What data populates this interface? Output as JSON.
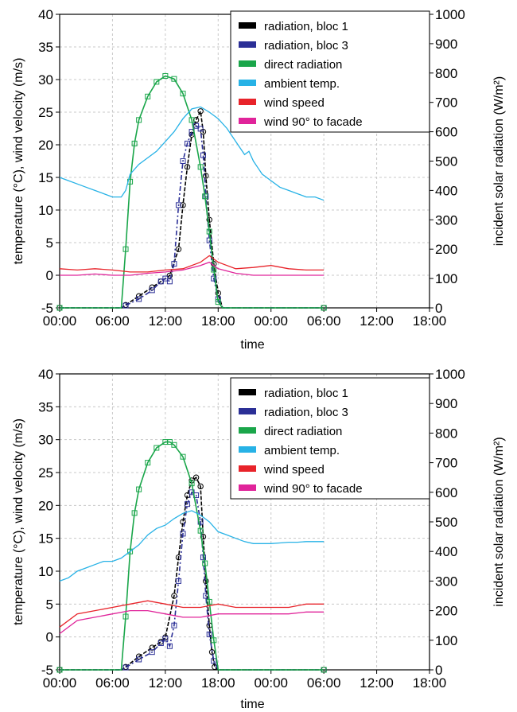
{
  "chart_data": [
    {
      "type": "line",
      "xlabel": "time",
      "ylabel": "temperature (°C), wind velocity (m/s)",
      "y2label": "incident solar radiation (W/m²)",
      "x_ticks": [
        "00:00",
        "06:00",
        "12:00",
        "18:00",
        "00:00",
        "06:00",
        "12:00",
        "18:00"
      ],
      "x_unit": "hours",
      "xlim": [
        0,
        42
      ],
      "ylim": [
        -5,
        40
      ],
      "y_ticks": [
        -5,
        0,
        5,
        10,
        15,
        20,
        25,
        30,
        35,
        40
      ],
      "y2lim": [
        0,
        1000
      ],
      "y2_ticks": [
        0,
        100,
        200,
        300,
        400,
        500,
        600,
        700,
        800,
        900,
        1000
      ],
      "grid": true,
      "legend": "top-right",
      "series": [
        {
          "name": "radiation, bloc 1",
          "axis": "right",
          "color": "#000000",
          "marker": "circle",
          "x": [
            0,
            7,
            7.5,
            9,
            10.5,
            11.5,
            12.5,
            13.5,
            14,
            14.5,
            15,
            15.5,
            16,
            16.3,
            16.6,
            17,
            17.5,
            18,
            18.5,
            19,
            30
          ],
          "y": [
            0,
            0,
            10,
            40,
            70,
            90,
            110,
            200,
            350,
            480,
            590,
            640,
            670,
            600,
            450,
            300,
            150,
            50,
            0,
            0,
            0
          ]
        },
        {
          "name": "radiation, bloc 3",
          "axis": "right",
          "color": "#2b2f96",
          "marker": "square",
          "x": [
            0,
            7,
            7.5,
            9,
            10.5,
            11.5,
            12,
            12.5,
            13,
            13.5,
            14,
            14.5,
            15,
            15.5,
            16,
            16.3,
            16.6,
            17,
            17.5,
            18,
            18.5,
            30
          ],
          "y": [
            0,
            0,
            8,
            30,
            60,
            90,
            100,
            90,
            150,
            350,
            500,
            560,
            600,
            620,
            610,
            520,
            380,
            230,
            100,
            30,
            0,
            0
          ]
        },
        {
          "name": "direct radiation",
          "axis": "right",
          "color": "#1aa64a",
          "marker": "square",
          "x": [
            0,
            7,
            7.5,
            8,
            8.5,
            9,
            10,
            11,
            12,
            13,
            14,
            15,
            16,
            16.5,
            17,
            17.5,
            18,
            18.5,
            30
          ],
          "y": [
            0,
            0,
            200,
            430,
            560,
            640,
            720,
            770,
            790,
            780,
            730,
            640,
            480,
            380,
            260,
            130,
            20,
            0,
            0
          ]
        },
        {
          "name": "ambient temp.",
          "axis": "left",
          "color": "#27b2e6",
          "x": [
            0,
            1,
            2,
            3,
            4,
            5,
            6,
            7,
            7.5,
            8,
            9,
            10,
            11,
            12,
            13,
            14,
            15,
            16,
            17,
            18,
            19,
            20,
            21,
            21.5,
            22,
            22.5,
            23,
            24,
            25,
            26,
            27,
            28,
            29,
            30
          ],
          "y": [
            15,
            14.5,
            14,
            13.5,
            13,
            12.5,
            12,
            12,
            13,
            15.5,
            17,
            18,
            19,
            20.5,
            22,
            24,
            25.5,
            25.8,
            25,
            24,
            22.5,
            20.5,
            18.5,
            19,
            17.5,
            16.5,
            15.5,
            14.5,
            13.5,
            13,
            12.5,
            12,
            12,
            11.5
          ]
        },
        {
          "name": "wind speed",
          "axis": "left",
          "color": "#e8232a",
          "x": [
            0,
            2,
            4,
            6,
            8,
            10,
            12,
            14,
            16,
            17,
            18,
            20,
            22,
            24,
            26,
            28,
            30
          ],
          "y": [
            1,
            0.8,
            1,
            0.8,
            0.5,
            0.5,
            0.8,
            1,
            2,
            3,
            2,
            1,
            1.2,
            1.5,
            1,
            0.8,
            0.8
          ]
        },
        {
          "name": "wind 90° to facade",
          "axis": "left",
          "color": "#e0249a",
          "x": [
            0,
            2,
            4,
            6,
            8,
            10,
            12,
            14,
            16,
            17,
            18,
            20,
            22,
            24,
            26,
            28,
            30
          ],
          "y": [
            0,
            0,
            0.2,
            0,
            0,
            0.3,
            0.5,
            0.8,
            1.5,
            2,
            1,
            0.3,
            0,
            0,
            0,
            0,
            0
          ]
        }
      ]
    },
    {
      "type": "line",
      "xlabel": "time",
      "ylabel": "temperature (°C), wind velocity (m/s)",
      "y2label": "incident solar radiation (W/m²)",
      "x_ticks": [
        "00:00",
        "06:00",
        "12:00",
        "18:00",
        "00:00",
        "06:00",
        "12:00",
        "18:00"
      ],
      "x_unit": "hours",
      "xlim": [
        0,
        42
      ],
      "ylim": [
        -5,
        40
      ],
      "y_ticks": [
        -5,
        0,
        5,
        10,
        15,
        20,
        25,
        30,
        35,
        40
      ],
      "y2lim": [
        0,
        1000
      ],
      "y2_ticks": [
        0,
        100,
        200,
        300,
        400,
        500,
        600,
        700,
        800,
        900,
        1000
      ],
      "grid": true,
      "legend": "top-right",
      "series": [
        {
          "name": "radiation, bloc 1",
          "axis": "right",
          "color": "#000000",
          "marker": "circle",
          "x": [
            0,
            7,
            7.5,
            9,
            10.5,
            11.5,
            12,
            13,
            13.5,
            14,
            14.5,
            15,
            15.5,
            16,
            16.3,
            16.6,
            17,
            17.3,
            17.6,
            18,
            30
          ],
          "y": [
            0,
            0,
            10,
            45,
            75,
            95,
            110,
            250,
            380,
            500,
            590,
            640,
            650,
            620,
            450,
            300,
            150,
            60,
            10,
            0,
            0
          ]
        },
        {
          "name": "radiation, bloc 3",
          "axis": "right",
          "color": "#2b2f96",
          "marker": "square",
          "x": [
            0,
            7,
            7.5,
            9,
            10.5,
            11.5,
            12,
            12.5,
            13,
            13.5,
            14,
            14.5,
            15,
            15.5,
            16,
            16.3,
            16.6,
            17,
            17.5,
            18,
            30
          ],
          "y": [
            0,
            0,
            8,
            35,
            60,
            90,
            105,
            80,
            150,
            300,
            460,
            560,
            600,
            590,
            500,
            380,
            250,
            120,
            30,
            0,
            0
          ]
        },
        {
          "name": "direct radiation",
          "axis": "right",
          "color": "#1aa64a",
          "marker": "square",
          "x": [
            0,
            7,
            7.5,
            8,
            8.5,
            9,
            10,
            11,
            12,
            12.5,
            13,
            14,
            15,
            16,
            16.5,
            17,
            17.5,
            18,
            30
          ],
          "y": [
            0,
            0,
            180,
            400,
            530,
            610,
            700,
            750,
            770,
            770,
            760,
            720,
            630,
            470,
            360,
            230,
            100,
            0,
            0
          ]
        },
        {
          "name": "ambient temp.",
          "axis": "left",
          "color": "#27b2e6",
          "x": [
            0,
            1,
            2,
            3,
            4,
            5,
            6,
            7,
            8,
            9,
            10,
            11,
            12,
            13,
            14,
            15,
            16,
            17,
            18,
            19,
            20,
            21,
            22,
            23,
            24,
            25,
            26,
            27,
            28,
            29,
            30
          ],
          "y": [
            8.5,
            9,
            10,
            10.5,
            11,
            11.5,
            11.5,
            12,
            13,
            14,
            15.5,
            16.5,
            17,
            18,
            18.8,
            19.2,
            18.5,
            17.5,
            16,
            15.5,
            15,
            14.5,
            14.2,
            14.2,
            14.2,
            14.3,
            14.4,
            14.4,
            14.5,
            14.5,
            14.5
          ]
        },
        {
          "name": "wind speed",
          "axis": "left",
          "color": "#e8232a",
          "x": [
            0,
            2,
            4,
            6,
            8,
            10,
            12,
            14,
            16,
            18,
            20,
            22,
            24,
            26,
            28,
            30
          ],
          "y": [
            1.5,
            3.5,
            4,
            4.5,
            5,
            5.5,
            5,
            4.5,
            4.5,
            5,
            4.5,
            4.5,
            4.5,
            4.5,
            5,
            5
          ]
        },
        {
          "name": "wind 90° to facade",
          "axis": "left",
          "color": "#e0249a",
          "x": [
            0,
            2,
            4,
            6,
            8,
            10,
            12,
            14,
            16,
            18,
            20,
            22,
            24,
            26,
            28,
            30
          ],
          "y": [
            0.5,
            2.5,
            3,
            3.5,
            4,
            4,
            3.5,
            3,
            3,
            3.5,
            3.5,
            3.5,
            3.5,
            3.5,
            3.8,
            3.8
          ]
        }
      ]
    }
  ]
}
